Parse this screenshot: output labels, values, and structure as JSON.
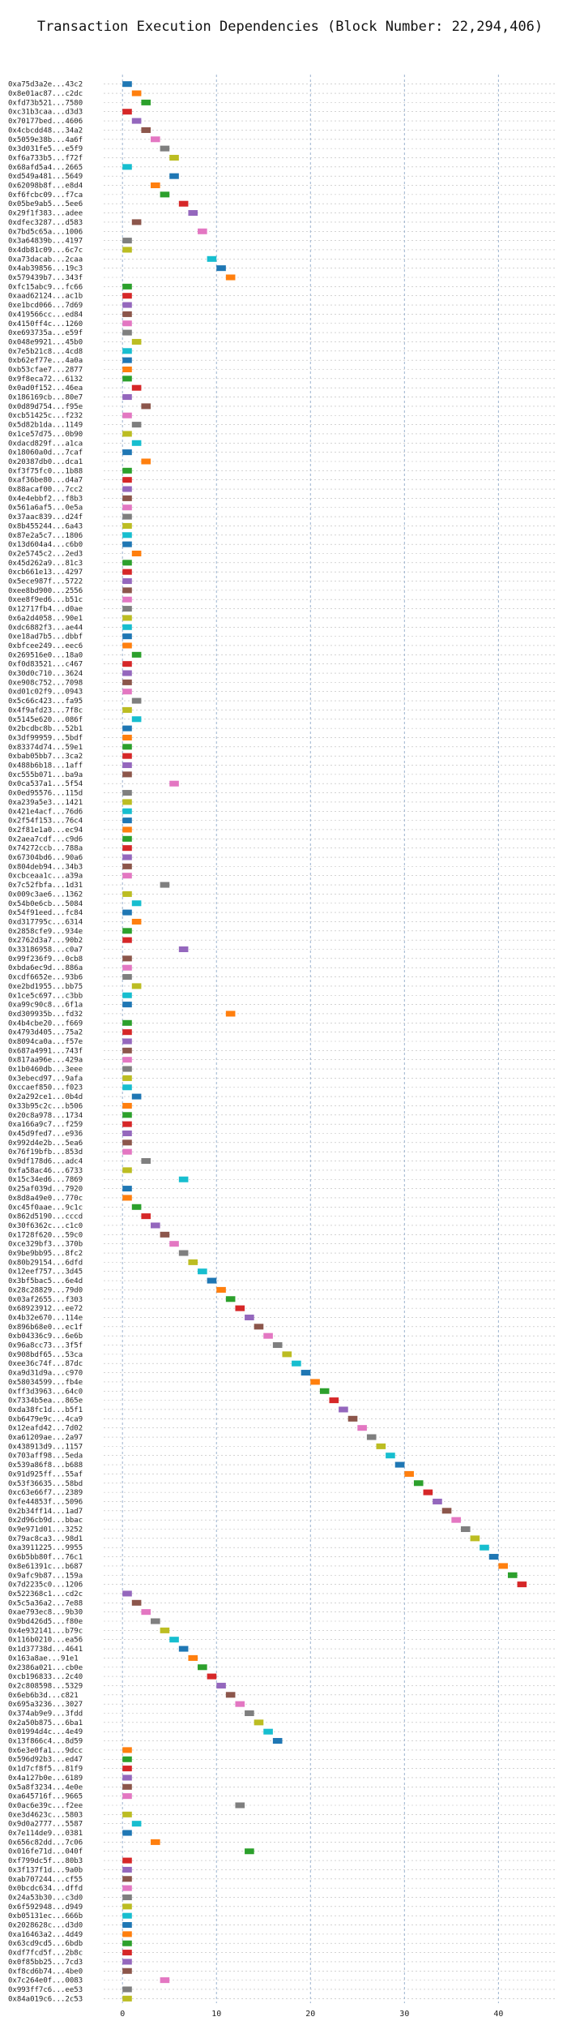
{
  "chart_data": {
    "type": "bar",
    "orientation": "horizontal",
    "title": "Transaction Execution Dependencies (Block Number: 22,294,406)",
    "xlabel": "",
    "ylabel": "",
    "xlim": [
      -2,
      46
    ],
    "xticks": [
      0,
      10,
      20,
      30,
      40
    ],
    "grid": true,
    "legend": "none",
    "bar_width": 1,
    "colors": [
      "#1f77b4",
      "#ff7f0e",
      "#2ca02c",
      "#d62728",
      "#9467bd",
      "#8c564b",
      "#e377c2",
      "#7f7f7f",
      "#bcbd22",
      "#17becf"
    ],
    "transactions": [
      {
        "label": "0xa75d3a2e...43c2",
        "start": 0
      },
      {
        "label": "0x8e01ac87...c2dc",
        "start": 1
      },
      {
        "label": "0xfd73b521...7580",
        "start": 2
      },
      {
        "label": "0xc31b3caa...d3d3",
        "start": 0
      },
      {
        "label": "0x70177bed...4606",
        "start": 1
      },
      {
        "label": "0x4cbcdd48...34a2",
        "start": 2
      },
      {
        "label": "0x5059e38b...4a6f",
        "start": 3
      },
      {
        "label": "0x3d031fe5...e5f9",
        "start": 4
      },
      {
        "label": "0xf6a733b5...f72f",
        "start": 5
      },
      {
        "label": "0x68afd5a4...2665",
        "start": 0
      },
      {
        "label": "0xd549a481...5649",
        "start": 5
      },
      {
        "label": "0x62098b8f...e8d4",
        "start": 3
      },
      {
        "label": "0xf6fcbc09...f7ca",
        "start": 4
      },
      {
        "label": "0x05be9ab5...5ee6",
        "start": 6
      },
      {
        "label": "0x29f1f383...adee",
        "start": 7
      },
      {
        "label": "0xdfec3287...d583",
        "start": 1
      },
      {
        "label": "0x7bd5c65a...1006",
        "start": 8
      },
      {
        "label": "0x3a64839b...4197",
        "start": 0
      },
      {
        "label": "0x4db81c09...6c7c",
        "start": 0
      },
      {
        "label": "0xa73dacab...2caa",
        "start": 9
      },
      {
        "label": "0x4ab39856...19c3",
        "start": 10
      },
      {
        "label": "0x579439b7...343f",
        "start": 11
      },
      {
        "label": "0xfc15abc9...fc66",
        "start": 0
      },
      {
        "label": "0xaad62124...ac1b",
        "start": 0
      },
      {
        "label": "0xe1bcd066...7d69",
        "start": 0
      },
      {
        "label": "0x419566cc...ed84",
        "start": 0
      },
      {
        "label": "0x4150ff4c...1260",
        "start": 0
      },
      {
        "label": "0xe693735a...e59f",
        "start": 0
      },
      {
        "label": "0x048e9921...45b0",
        "start": 1
      },
      {
        "label": "0x7e5b21c8...4cd8",
        "start": 0
      },
      {
        "label": "0xb62ef77e...4a0a",
        "start": 0
      },
      {
        "label": "0xb53cfae7...2877",
        "start": 0
      },
      {
        "label": "0x9f8eca72...6132",
        "start": 0
      },
      {
        "label": "0x0ad0f152...46ea",
        "start": 1
      },
      {
        "label": "0x186169cb...80e7",
        "start": 0
      },
      {
        "label": "0x0d89d754...f95e",
        "start": 2
      },
      {
        "label": "0xcb51425c...f232",
        "start": 0
      },
      {
        "label": "0x5d82b1da...1149",
        "start": 1
      },
      {
        "label": "0x1ce57d75...0b90",
        "start": 0
      },
      {
        "label": "0xdacd829f...a1ca",
        "start": 1
      },
      {
        "label": "0x18060a0d...7caf",
        "start": 0
      },
      {
        "label": "0x20387db0...dca1",
        "start": 2
      },
      {
        "label": "0xf3f75fc0...1b88",
        "start": 0
      },
      {
        "label": "0xaf36be80...d4a7",
        "start": 0
      },
      {
        "label": "0x88acaf00...7cc2",
        "start": 0
      },
      {
        "label": "0x4e4ebbf2...f8b3",
        "start": 0
      },
      {
        "label": "0x561a6af5...0e5a",
        "start": 0
      },
      {
        "label": "0x37aac839...d24f",
        "start": 0
      },
      {
        "label": "0x8b455244...6a43",
        "start": 0
      },
      {
        "label": "0x87e2a5c7...1806",
        "start": 0
      },
      {
        "label": "0x13d604a4...c6b0",
        "start": 0
      },
      {
        "label": "0x2e5745c2...2ed3",
        "start": 1
      },
      {
        "label": "0x45d262a9...81c3",
        "start": 0
      },
      {
        "label": "0xcb661e13...4297",
        "start": 0
      },
      {
        "label": "0x5ece987f...5722",
        "start": 0
      },
      {
        "label": "0xee8bd900...2556",
        "start": 0
      },
      {
        "label": "0xee8f9ed6...b51c",
        "start": 0
      },
      {
        "label": "0x12717fb4...d0ae",
        "start": 0
      },
      {
        "label": "0x6a2d4058...90e1",
        "start": 0
      },
      {
        "label": "0xdc6882f3...ae44",
        "start": 0
      },
      {
        "label": "0xe18ad7b5...dbbf",
        "start": 0
      },
      {
        "label": "0xbfcee249...eec6",
        "start": 0
      },
      {
        "label": "0x269516e0...18a0",
        "start": 1
      },
      {
        "label": "0xf0d83521...c467",
        "start": 0
      },
      {
        "label": "0x30d0c710...3624",
        "start": 0
      },
      {
        "label": "0xe908c752...7098",
        "start": 0
      },
      {
        "label": "0xd01c02f9...0943",
        "start": 0
      },
      {
        "label": "0x5c66c423...fa95",
        "start": 1
      },
      {
        "label": "0x4f9afd23...7f8c",
        "start": 0
      },
      {
        "label": "0x5145e620...086f",
        "start": 1
      },
      {
        "label": "0x2bcdbc8b...52b1",
        "start": 0
      },
      {
        "label": "0x3df99959...5bdf",
        "start": 0
      },
      {
        "label": "0x83374d74...59e1",
        "start": 0
      },
      {
        "label": "0xbab05bb7...3ca2",
        "start": 0
      },
      {
        "label": "0x488b6b18...1aff",
        "start": 0
      },
      {
        "label": "0xc555b071...ba9a",
        "start": 0
      },
      {
        "label": "0x0ca537a1...5f54",
        "start": 5
      },
      {
        "label": "0x0ed95576...115d",
        "start": 0
      },
      {
        "label": "0xa239a5e3...1421",
        "start": 0
      },
      {
        "label": "0x421e4acf...76d6",
        "start": 0
      },
      {
        "label": "0x2f54f153...76c4",
        "start": 0
      },
      {
        "label": "0x2f81e1a0...ec94",
        "start": 0
      },
      {
        "label": "0x2aea7cdf...c9d6",
        "start": 0
      },
      {
        "label": "0x74272ccb...788a",
        "start": 0
      },
      {
        "label": "0x67304bd6...90a6",
        "start": 0
      },
      {
        "label": "0x804deb94...34b3",
        "start": 0
      },
      {
        "label": "0xcbceaa1c...a39a",
        "start": 0
      },
      {
        "label": "0x7c52fbfa...1d31",
        "start": 4
      },
      {
        "label": "0x009c3ae6...1362",
        "start": 0
      },
      {
        "label": "0x54b0e6cb...5084",
        "start": 1
      },
      {
        "label": "0x54f91eed...fc84",
        "start": 0
      },
      {
        "label": "0xd317795c...6314",
        "start": 1
      },
      {
        "label": "0x2858cfe9...934e",
        "start": 0
      },
      {
        "label": "0x2762d3a7...90b2",
        "start": 0
      },
      {
        "label": "0x33186958...c0a7",
        "start": 6
      },
      {
        "label": "0x99f236f9...0cb8",
        "start": 0
      },
      {
        "label": "0xbda6ec9d...886a",
        "start": 0
      },
      {
        "label": "0xcdf6652e...93b6",
        "start": 0
      },
      {
        "label": "0xe2bd1955...bb75",
        "start": 1
      },
      {
        "label": "0x1ce5c697...c3bb",
        "start": 0
      },
      {
        "label": "0xa99c90c8...6f1a",
        "start": 0
      },
      {
        "label": "0xd309935b...fd32",
        "start": 11
      },
      {
        "label": "0x4b4cbe20...f669",
        "start": 0
      },
      {
        "label": "0x4793d405...75a2",
        "start": 0
      },
      {
        "label": "0x8094ca0a...f57e",
        "start": 0
      },
      {
        "label": "0x687a4991...743f",
        "start": 0
      },
      {
        "label": "0x817aa96e...429a",
        "start": 0
      },
      {
        "label": "0x1b0460db...3eee",
        "start": 0
      },
      {
        "label": "0x3ebecd97...9afa",
        "start": 0
      },
      {
        "label": "0xccaef850...f023",
        "start": 0
      },
      {
        "label": "0x2a292ce1...0b4d",
        "start": 1
      },
      {
        "label": "0x33b95c2c...b506",
        "start": 0
      },
      {
        "label": "0x20c8a978...1734",
        "start": 0
      },
      {
        "label": "0xa166a9c7...f259",
        "start": 0
      },
      {
        "label": "0x45d9fed7...e936",
        "start": 0
      },
      {
        "label": "0x992d4e2b...5ea6",
        "start": 0
      },
      {
        "label": "0x76f19bfb...853d",
        "start": 0
      },
      {
        "label": "0x9df178d6...adc4",
        "start": 2
      },
      {
        "label": "0xfa58ac46...6733",
        "start": 0
      },
      {
        "label": "0x15c34ed6...7869",
        "start": 6
      },
      {
        "label": "0x25af039d...7920",
        "start": 0
      },
      {
        "label": "0x8d8a49e0...770c",
        "start": 0
      },
      {
        "label": "0xc45f0aae...9c1c",
        "start": 1
      },
      {
        "label": "0x862d5190...cccd",
        "start": 2
      },
      {
        "label": "0x30f6362c...c1c0",
        "start": 3
      },
      {
        "label": "0x1728f620...59c0",
        "start": 4
      },
      {
        "label": "0xce329bf3...370b",
        "start": 5
      },
      {
        "label": "0x9be9bb95...8fc2",
        "start": 6
      },
      {
        "label": "0x80b29154...6dfd",
        "start": 7
      },
      {
        "label": "0x12eef757...3d45",
        "start": 8
      },
      {
        "label": "0x3bf5bac5...6e4d",
        "start": 9
      },
      {
        "label": "0x28c28829...79d0",
        "start": 10
      },
      {
        "label": "0x03af2655...f303",
        "start": 11
      },
      {
        "label": "0x68923912...ee72",
        "start": 12
      },
      {
        "label": "0x4b32e670...114e",
        "start": 13
      },
      {
        "label": "0x896b68e0...ec1f",
        "start": 14
      },
      {
        "label": "0xb04336c9...6e6b",
        "start": 15
      },
      {
        "label": "0x96a8cc73...3f5f",
        "start": 16
      },
      {
        "label": "0x908bdf65...53ca",
        "start": 17
      },
      {
        "label": "0xee36c74f...87dc",
        "start": 18
      },
      {
        "label": "0xa9d31d9a...c970",
        "start": 19
      },
      {
        "label": "0x58034599...fb4e",
        "start": 20
      },
      {
        "label": "0xff3d3963...64c0",
        "start": 21
      },
      {
        "label": "0x7334b5ea...865e",
        "start": 22
      },
      {
        "label": "0xda38fc1d...b5f1",
        "start": 23
      },
      {
        "label": "0xb6479e9c...4ca9",
        "start": 24
      },
      {
        "label": "0x12eafd42...7d02",
        "start": 25
      },
      {
        "label": "0xa61209ae...2a97",
        "start": 26
      },
      {
        "label": "0x438913d9...1157",
        "start": 27
      },
      {
        "label": "0x703aff98...5eda",
        "start": 28
      },
      {
        "label": "0x539a86f8...b688",
        "start": 29
      },
      {
        "label": "0x91d925ff...55af",
        "start": 30
      },
      {
        "label": "0x53f36635...58bd",
        "start": 31
      },
      {
        "label": "0xc63e66f7...2389",
        "start": 32
      },
      {
        "label": "0xfe44853f...5096",
        "start": 33
      },
      {
        "label": "0x2b34ff14...1ad7",
        "start": 34
      },
      {
        "label": "0x2d96cb9d...bbac",
        "start": 35
      },
      {
        "label": "0x9e971d01...3252",
        "start": 36
      },
      {
        "label": "0x79ac8ca3...98d1",
        "start": 37
      },
      {
        "label": "0xa3911225...9955",
        "start": 38
      },
      {
        "label": "0x6b5bb80f...76c1",
        "start": 39
      },
      {
        "label": "0x8e61391c...b687",
        "start": 40
      },
      {
        "label": "0x9afc9b87...159a",
        "start": 41
      },
      {
        "label": "0x7d2235c0...1206",
        "start": 42
      },
      {
        "label": "0x522368c1...cd2c",
        "start": 0
      },
      {
        "label": "0x5c5a36a2...7e88",
        "start": 1
      },
      {
        "label": "0xae793ec8...9b30",
        "start": 2
      },
      {
        "label": "0x9bd426d5...f80e",
        "start": 3
      },
      {
        "label": "0x4e932141...b79c",
        "start": 4
      },
      {
        "label": "0x116b0210...ea56",
        "start": 5
      },
      {
        "label": "0x1d37738d...4641",
        "start": 6
      },
      {
        "label": "0x163a8ae...91e1",
        "start": 7
      },
      {
        "label": "0x2386a021...cb0e",
        "start": 8
      },
      {
        "label": "0xcb196833...2c40",
        "start": 9
      },
      {
        "label": "0x2c808598...5329",
        "start": 10
      },
      {
        "label": "0x6eb6b3d...c821",
        "start": 11
      },
      {
        "label": "0x695a3236...3027",
        "start": 12
      },
      {
        "label": "0x374ab9e9...3fdd",
        "start": 13
      },
      {
        "label": "0x2a50b875...6ba1",
        "start": 14
      },
      {
        "label": "0x01994d4c...4e49",
        "start": 15
      },
      {
        "label": "0x13f866c4...8d59",
        "start": 16
      },
      {
        "label": "0x6e3e0fa1...9dcc",
        "start": 0
      },
      {
        "label": "0x596d92b3...ed47",
        "start": 0
      },
      {
        "label": "0x1d7cf8f5...81f9",
        "start": 0
      },
      {
        "label": "0x4a127b0e...6189",
        "start": 0
      },
      {
        "label": "0x5a8f3234...4e0e",
        "start": 0
      },
      {
        "label": "0xa645716f...9665",
        "start": 0
      },
      {
        "label": "0x0ac6e39c...f2ee",
        "start": 12
      },
      {
        "label": "0xe3d4623c...5803",
        "start": 0
      },
      {
        "label": "0x9d0a2777...5587",
        "start": 1
      },
      {
        "label": "0x7e114de9...0381",
        "start": 0
      },
      {
        "label": "0x656c82dd...7c06",
        "start": 3
      },
      {
        "label": "0x016fe71d...040f",
        "start": 13
      },
      {
        "label": "0xf799dc5f...80b3",
        "start": 0
      },
      {
        "label": "0x3f137f1d...9a0b",
        "start": 0
      },
      {
        "label": "0xab707244...cf55",
        "start": 0
      },
      {
        "label": "0x0bcdc634...dffd",
        "start": 0
      },
      {
        "label": "0x24a53b30...c3d0",
        "start": 0
      },
      {
        "label": "0x6f592948...d949",
        "start": 0
      },
      {
        "label": "0xb05131ec...666b",
        "start": 0
      },
      {
        "label": "0x2028628c...d3d0",
        "start": 0
      },
      {
        "label": "0xa16463a2...4d49",
        "start": 0
      },
      {
        "label": "0x63cd9cd5...6bdb",
        "start": 0
      },
      {
        "label": "0xdf7fcd5f...2b8c",
        "start": 0
      },
      {
        "label": "0x0f85bb25...7cd3",
        "start": 0
      },
      {
        "label": "0xf8cd6b74...4be0",
        "start": 0
      },
      {
        "label": "0x7c264e0f...0083",
        "start": 4
      },
      {
        "label": "0x993ff7c6...ee53",
        "start": 0
      },
      {
        "label": "0x84a019c6...2c53",
        "start": 0
      }
    ]
  }
}
